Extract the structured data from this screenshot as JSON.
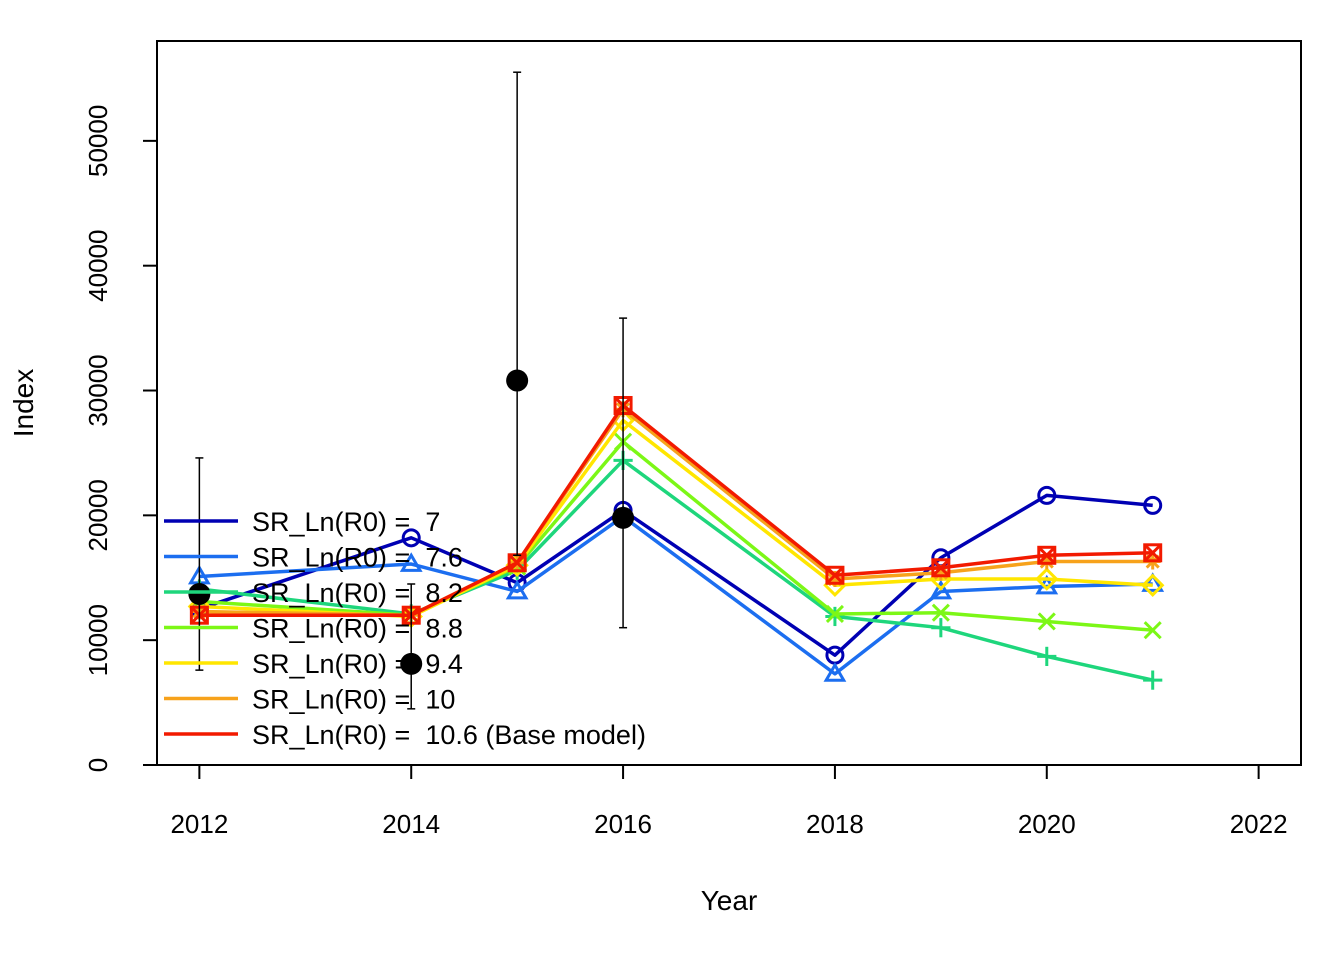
{
  "chart_data": {
    "type": "line",
    "title": "",
    "xlabel": "Year",
    "ylabel": "Index",
    "xlim": [
      2011.6,
      2022.4
    ],
    "ylim": [
      0,
      58000
    ],
    "xticks": [
      2012,
      2014,
      2016,
      2018,
      2020,
      2022
    ],
    "yticks": [
      0,
      10000,
      20000,
      30000,
      40000,
      50000
    ],
    "grid": false,
    "legend_position": "bottom-left",
    "x": [
      2012,
      2014,
      2015,
      2016,
      2018,
      2019,
      2020,
      2021
    ],
    "series": [
      {
        "name": "SR_Ln(R0) =  7",
        "color": "#0000B3",
        "marker": "circle",
        "values": [
          12500,
          18200,
          14600,
          20400,
          8800,
          16600,
          21600,
          20800
        ]
      },
      {
        "name": "SR_Ln(R0) =  7.6",
        "color": "#1C6EF0",
        "marker": "triangle",
        "values": [
          15100,
          16100,
          13900,
          19900,
          7300,
          13900,
          14300,
          14500
        ]
      },
      {
        "name": "SR_Ln(R0) =  8.2",
        "color": "#1ED67C",
        "marker": "plus",
        "values": [
          14100,
          12100,
          15600,
          24400,
          11900,
          11000,
          8700,
          6800
        ]
      },
      {
        "name": "SR_Ln(R0) =  8.8",
        "color": "#7CF716",
        "marker": "cross",
        "values": [
          13100,
          12000,
          15900,
          25900,
          12100,
          12200,
          11500,
          10800
        ]
      },
      {
        "name": "SR_Ln(R0) =  9.4",
        "color": "#FFE600",
        "marker": "diamond",
        "values": [
          12700,
          11900,
          16000,
          27600,
          14400,
          14900,
          14900,
          14400
        ]
      },
      {
        "name": "SR_Ln(R0) =  10",
        "color": "#F7A21B",
        "marker": "asterisk",
        "values": [
          12300,
          12000,
          16200,
          28500,
          14900,
          15400,
          16300,
          16300
        ]
      },
      {
        "name": "SR_Ln(R0) =  10.6 (Base model)",
        "color": "#F21A00",
        "marker": "square-x",
        "values": [
          12000,
          12000,
          16200,
          28800,
          15200,
          15800,
          16800,
          17000
        ]
      }
    ],
    "observations": {
      "x": [
        2012,
        2014,
        2015,
        2016
      ],
      "values": [
        13700,
        8100,
        30800,
        19800
      ],
      "lower": [
        7600,
        4500,
        16800,
        11000
      ],
      "upper": [
        24600,
        14500,
        55500,
        35800
      ],
      "color": "#000000"
    }
  }
}
